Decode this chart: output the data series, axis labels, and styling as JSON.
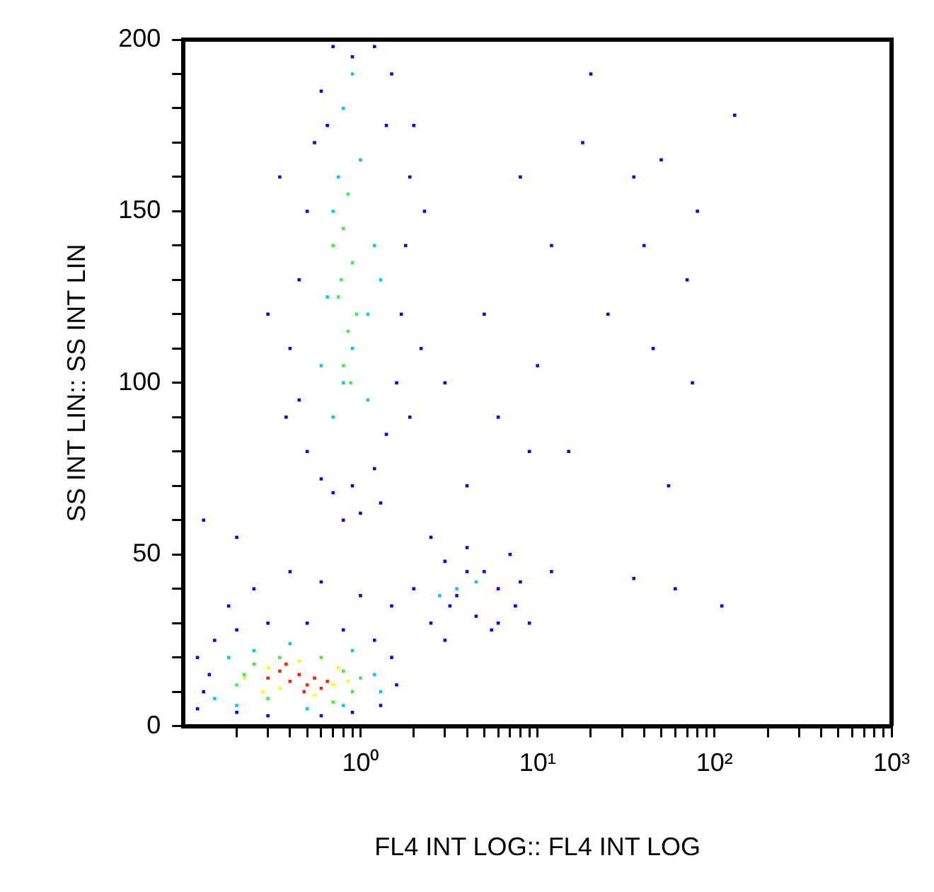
{
  "chart_data": {
    "type": "scatter",
    "xlabel": "FL4 INT LOG:: FL4 INT LOG",
    "ylabel": "SS INT LIN:: SS INT LIN",
    "log": "x",
    "grid": false,
    "legend": false,
    "marker": "square",
    "xlim": [
      0.1,
      1000
    ],
    "ylim": [
      0,
      200
    ],
    "xticks": [
      {
        "value": 0.2,
        "label": null
      },
      {
        "value": 0.3,
        "label": null
      },
      {
        "value": 0.4,
        "label": null
      },
      {
        "value": 0.5,
        "label": null
      },
      {
        "value": 0.6,
        "label": null
      },
      {
        "value": 0.7,
        "label": null
      },
      {
        "value": 0.8,
        "label": null
      },
      {
        "value": 0.9,
        "label": null
      },
      {
        "value": 1,
        "label": "10⁰"
      },
      {
        "value": 2,
        "label": null
      },
      {
        "value": 3,
        "label": null
      },
      {
        "value": 4,
        "label": null
      },
      {
        "value": 5,
        "label": null
      },
      {
        "value": 6,
        "label": null
      },
      {
        "value": 7,
        "label": null
      },
      {
        "value": 8,
        "label": null
      },
      {
        "value": 9,
        "label": null
      },
      {
        "value": 10,
        "label": "10¹"
      },
      {
        "value": 20,
        "label": null
      },
      {
        "value": 30,
        "label": null
      },
      {
        "value": 40,
        "label": null
      },
      {
        "value": 50,
        "label": null
      },
      {
        "value": 60,
        "label": null
      },
      {
        "value": 70,
        "label": null
      },
      {
        "value": 80,
        "label": null
      },
      {
        "value": 90,
        "label": null
      },
      {
        "value": 100,
        "label": "10²"
      },
      {
        "value": 200,
        "label": null
      },
      {
        "value": 300,
        "label": null
      },
      {
        "value": 400,
        "label": null
      },
      {
        "value": 500,
        "label": null
      },
      {
        "value": 600,
        "label": null
      },
      {
        "value": 700,
        "label": null
      },
      {
        "value": 800,
        "label": null
      },
      {
        "value": 900,
        "label": null
      },
      {
        "value": 1000,
        "label": "10³"
      }
    ],
    "yticks": [
      0,
      {
        "value": 10,
        "label": null
      },
      {
        "value": 20,
        "label": null
      },
      {
        "value": 30,
        "label": null
      },
      {
        "value": 40,
        "label": null
      },
      50,
      {
        "value": 60,
        "label": null
      },
      {
        "value": 70,
        "label": null
      },
      {
        "value": 80,
        "label": null
      },
      {
        "value": 90,
        "label": null
      },
      100,
      {
        "value": 110,
        "label": null
      },
      {
        "value": 120,
        "label": null
      },
      {
        "value": 130,
        "label": null
      },
      {
        "value": 140,
        "label": null
      },
      150,
      {
        "value": 160,
        "label": null
      },
      {
        "value": 170,
        "label": null
      },
      {
        "value": 180,
        "label": null
      },
      {
        "value": 190,
        "label": null
      },
      200
    ],
    "series": [
      {
        "color": "#0000ff",
        "x": [
          0.5,
          0.6,
          0.7,
          1.2,
          1.4,
          0.45,
          1.6,
          0.4,
          1.7,
          0.45,
          1.8,
          0.5,
          1.9,
          0.55,
          2,
          0.6,
          1.5,
          0.7,
          1.2,
          0.35,
          2.3,
          0.3,
          2.2,
          0.38,
          1.9,
          0.9,
          1.0,
          0.8,
          1.3,
          0.65,
          1.4,
          0.9,
          0.12,
          0.13,
          0.12,
          0.15,
          0.2,
          0.3,
          0.5,
          0.8,
          1.2,
          1.5,
          1.6,
          1.3,
          0.9,
          0.6,
          0.3,
          0.2,
          0.14,
          0.18,
          0.25,
          0.4,
          0.6,
          1,
          1.5,
          0.13,
          0.2,
          2,
          2.5,
          3,
          3.5,
          4,
          4.5,
          5,
          6,
          7,
          7.5,
          8,
          3,
          5.5,
          2.5,
          4,
          6,
          3.2,
          9,
          10,
          12,
          15,
          20,
          25,
          35,
          40,
          45,
          50,
          55,
          60,
          70,
          75,
          80,
          110,
          130,
          35,
          18,
          8,
          5,
          12,
          3,
          4,
          6,
          9
        ],
        "values": [
          80,
          72,
          68,
          75,
          85,
          95,
          100,
          110,
          120,
          130,
          140,
          150,
          160,
          170,
          175,
          185,
          190,
          198,
          198,
          160,
          150,
          120,
          110,
          90,
          90,
          70,
          62,
          60,
          65,
          175,
          175,
          195,
          5,
          10,
          20,
          25,
          28,
          30,
          30,
          28,
          25,
          20,
          12,
          6,
          4,
          3,
          3,
          4,
          15,
          35,
          40,
          45,
          42,
          38,
          35,
          60,
          55,
          40,
          30,
          48,
          38,
          52,
          32,
          45,
          40,
          50,
          35,
          42,
          25,
          28,
          55,
          45,
          30,
          35,
          30,
          105,
          45,
          80,
          190,
          120,
          160,
          140,
          110,
          165,
          70,
          40,
          130,
          100,
          150,
          35,
          178,
          43,
          170,
          160,
          120,
          140,
          100,
          70,
          90,
          80
        ]
      },
      {
        "color": "#00c8ff",
        "x": [
          0.7,
          0.8,
          0.9,
          1.1,
          0.65,
          1.2,
          0.7,
          1.0,
          0.8,
          1.1,
          0.6,
          1.3,
          0.75,
          0.9,
          0.15,
          0.18,
          0.25,
          0.4,
          0.9,
          1.2,
          1.3,
          0.2,
          0.5,
          0.8,
          3.5,
          4.5,
          2.8
        ],
        "values": [
          90,
          100,
          110,
          120,
          125,
          140,
          150,
          165,
          180,
          95,
          105,
          130,
          160,
          190,
          8,
          20,
          22,
          24,
          22,
          15,
          10,
          6,
          5,
          6,
          40,
          42,
          38
        ]
      },
      {
        "color": "#40f040",
        "x": [
          0.8,
          0.85,
          0.75,
          0.9,
          0.8,
          0.85,
          0.78,
          0.95,
          0.7,
          0.88,
          0.2,
          0.25,
          0.3,
          0.35,
          0.8,
          0.9,
          1.0,
          0.22,
          0.6,
          0.7
        ],
        "values": [
          105,
          115,
          125,
          135,
          145,
          155,
          130,
          120,
          140,
          100,
          12,
          18,
          8,
          20,
          16,
          10,
          14,
          15,
          20,
          7
        ]
      },
      {
        "color": "#ffff00",
        "x": [
          0.22,
          0.3,
          0.35,
          0.45,
          0.55,
          0.7,
          0.75,
          0.28,
          0.85
        ],
        "values": [
          14,
          17,
          11,
          19,
          9,
          12,
          17,
          10,
          13
        ]
      },
      {
        "color": "#ff2000",
        "x": [
          0.3,
          0.35,
          0.4,
          0.45,
          0.5,
          0.55,
          0.6,
          0.65,
          0.38,
          0.48
        ],
        "values": [
          14,
          16,
          13,
          15,
          12,
          14,
          11,
          13,
          18,
          10
        ]
      }
    ]
  }
}
